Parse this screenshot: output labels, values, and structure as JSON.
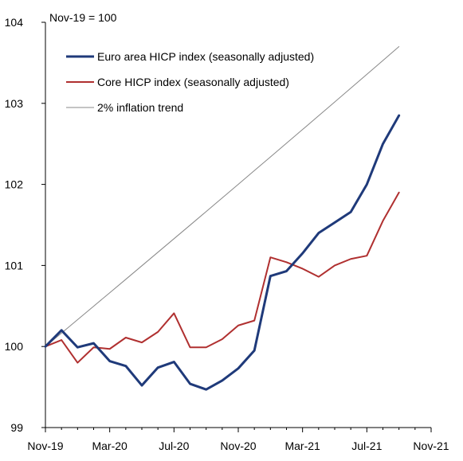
{
  "chart_data": {
    "type": "line",
    "note": "Nov-19 = 100",
    "x_tick_labels": [
      "Nov-19",
      "Mar-20",
      "Jul-20",
      "Nov-20",
      "Mar-21",
      "Jul-21",
      "Nov-21"
    ],
    "y_ticks": [
      99,
      100,
      101,
      102,
      103,
      104
    ],
    "ylim": [
      99,
      104
    ],
    "x_range_months": [
      0,
      24
    ],
    "grid": false,
    "legend_position": "top-left",
    "x": [
      "Nov-19",
      "Dec-19",
      "Jan-20",
      "Feb-20",
      "Mar-20",
      "Apr-20",
      "May-20",
      "Jun-20",
      "Jul-20",
      "Aug-20",
      "Sep-20",
      "Oct-20",
      "Nov-20",
      "Dec-20",
      "Jan-21",
      "Feb-21",
      "Mar-21",
      "Apr-21",
      "May-21",
      "Jun-21",
      "Jul-21",
      "Aug-21",
      "Sep-21"
    ],
    "series": [
      {
        "name": "Euro area HICP index (seasonally adjusted)",
        "color": "#1f3a7a",
        "values": [
          100.0,
          100.2,
          99.99,
          100.04,
          99.82,
          99.76,
          99.52,
          99.74,
          99.81,
          99.54,
          99.47,
          99.58,
          99.73,
          99.95,
          100.87,
          100.93,
          101.15,
          101.4,
          101.53,
          101.66,
          102.0,
          102.5,
          102.85
        ]
      },
      {
        "name": "Core HICP index (seasonally adjusted)",
        "color": "#b03030",
        "values": [
          100.0,
          100.08,
          99.8,
          99.99,
          99.97,
          100.11,
          100.05,
          100.18,
          100.41,
          99.99,
          99.99,
          100.09,
          100.26,
          100.32,
          101.1,
          101.04,
          100.96,
          100.86,
          101.0,
          101.08,
          101.12,
          101.55,
          101.9
        ]
      },
      {
        "name": "2% inflation trend",
        "color": "#888888",
        "values": [
          100.0,
          100.165,
          100.331,
          100.497,
          100.663,
          100.829,
          100.996,
          101.163,
          101.33,
          101.497,
          101.665,
          101.833,
          102.001,
          102.17,
          102.339,
          102.508,
          102.677,
          102.847,
          103.017,
          103.187,
          103.358,
          103.529,
          103.7
        ]
      }
    ]
  }
}
